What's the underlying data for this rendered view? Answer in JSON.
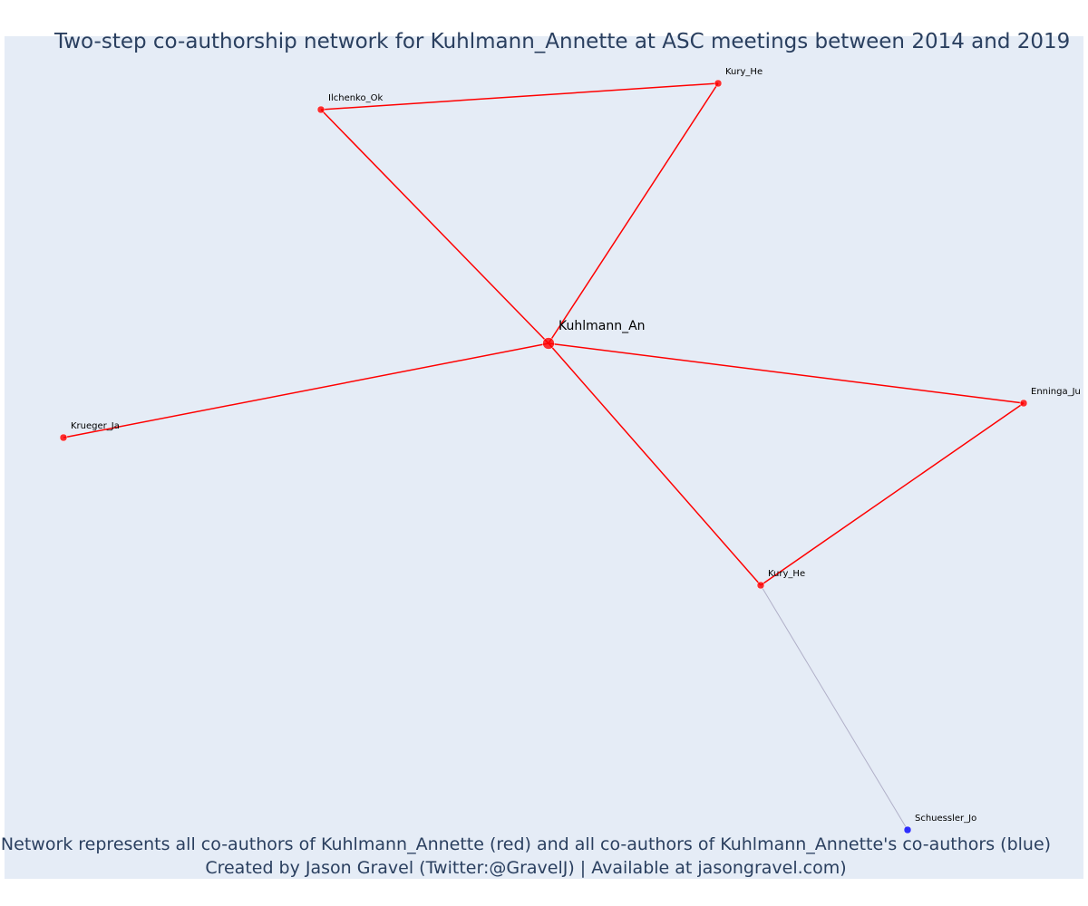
{
  "title": "Two-step co-authorship network for Kuhlmann_Annette at ASC meetings between 2014 and 2019",
  "nodes": [
    {
      "label": "Kuhlmann_An",
      "color": "#ff0000"
    },
    {
      "label": "Ilchenko_Ok",
      "color": "#ff0000"
    },
    {
      "label": "Kury_He",
      "color": "#ff0000"
    },
    {
      "label": "Krueger_Ja",
      "color": "#ff0000"
    },
    {
      "label": "Enninga_Ju",
      "color": "#ff0000"
    },
    {
      "label": "Kury_He",
      "color": "#ff0000"
    },
    {
      "label": "Schuessler_Jo",
      "color": "#0000ff"
    }
  ],
  "edges": [
    {
      "source": 0,
      "target": 1,
      "color": "#ff0000"
    },
    {
      "source": 0,
      "target": 2,
      "color": "#ff0000"
    },
    {
      "source": 1,
      "target": 2,
      "color": "#ff0000"
    },
    {
      "source": 0,
      "target": 3,
      "color": "#ff0000"
    },
    {
      "source": 0,
      "target": 4,
      "color": "#ff0000"
    },
    {
      "source": 0,
      "target": 5,
      "color": "#ff0000"
    },
    {
      "source": 4,
      "target": 5,
      "color": "#ff0000"
    },
    {
      "source": 5,
      "target": 6,
      "color": "#b0b0c8"
    }
  ],
  "footer": {
    "line1": "Network represents all co-authors of Kuhlmann_Annette (red) and all co-authors of Kuhlmann_Annette's co-authors (blue)",
    "line2": "Created by Jason Gravel (Twitter:@GravelJ) | Available at jasongravel.com)"
  }
}
